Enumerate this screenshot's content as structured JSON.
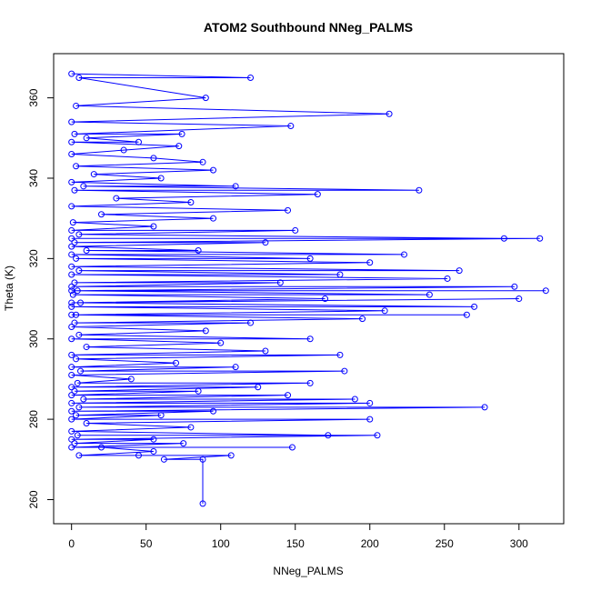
{
  "chart_data": {
    "type": "line",
    "title": "ATOM2 Southbound NNeg_PALMS",
    "xlabel": "NNeg_PALMS",
    "ylabel": "Theta (K)",
    "xlim": [
      -12,
      330
    ],
    "ylim": [
      254,
      371
    ],
    "x_ticks": [
      0,
      50,
      100,
      150,
      200,
      250,
      300
    ],
    "y_ticks": [
      260,
      280,
      300,
      320,
      340,
      360
    ],
    "grid": false,
    "legend": "none",
    "series": [
      {
        "color": "#0000ff",
        "marker": "open-circle",
        "points": [
          [
            0,
            366
          ],
          [
            120,
            365
          ],
          [
            5,
            365
          ],
          [
            90,
            360
          ],
          [
            3,
            358
          ],
          [
            213,
            356
          ],
          [
            0,
            354
          ],
          [
            147,
            353
          ],
          [
            2,
            351
          ],
          [
            74,
            351
          ],
          [
            10,
            350
          ],
          [
            45,
            349
          ],
          [
            0,
            349
          ],
          [
            72,
            348
          ],
          [
            35,
            347
          ],
          [
            0,
            346
          ],
          [
            55,
            345
          ],
          [
            88,
            344
          ],
          [
            3,
            343
          ],
          [
            95,
            342
          ],
          [
            15,
            341
          ],
          [
            60,
            340
          ],
          [
            0,
            339
          ],
          [
            110,
            338
          ],
          [
            8,
            338
          ],
          [
            233,
            337
          ],
          [
            2,
            337
          ],
          [
            165,
            336
          ],
          [
            30,
            335
          ],
          [
            80,
            334
          ],
          [
            0,
            333
          ],
          [
            145,
            332
          ],
          [
            20,
            331
          ],
          [
            95,
            330
          ],
          [
            1,
            329
          ],
          [
            55,
            328
          ],
          [
            0,
            327
          ],
          [
            150,
            327
          ],
          [
            5,
            326
          ],
          [
            290,
            325
          ],
          [
            0,
            325
          ],
          [
            314,
            325
          ],
          [
            2,
            324
          ],
          [
            130,
            324
          ],
          [
            0,
            323
          ],
          [
            85,
            322
          ],
          [
            10,
            322
          ],
          [
            223,
            321
          ],
          [
            0,
            321
          ],
          [
            160,
            320
          ],
          [
            3,
            320
          ],
          [
            200,
            319
          ],
          [
            0,
            318
          ],
          [
            260,
            317
          ],
          [
            5,
            317
          ],
          [
            180,
            316
          ],
          [
            0,
            316
          ],
          [
            252,
            315
          ],
          [
            2,
            314
          ],
          [
            140,
            314
          ],
          [
            0,
            313
          ],
          [
            297,
            313
          ],
          [
            4,
            312
          ],
          [
            318,
            312
          ],
          [
            0,
            312
          ],
          [
            240,
            311
          ],
          [
            1,
            311
          ],
          [
            170,
            310
          ],
          [
            0,
            309
          ],
          [
            300,
            310
          ],
          [
            6,
            309
          ],
          [
            270,
            308
          ],
          [
            0,
            308
          ],
          [
            210,
            307
          ],
          [
            3,
            306
          ],
          [
            265,
            306
          ],
          [
            0,
            306
          ],
          [
            195,
            305
          ],
          [
            2,
            304
          ],
          [
            120,
            304
          ],
          [
            0,
            303
          ],
          [
            90,
            302
          ],
          [
            5,
            301
          ],
          [
            160,
            300
          ],
          [
            0,
            300
          ],
          [
            100,
            299
          ],
          [
            10,
            298
          ],
          [
            130,
            297
          ],
          [
            0,
            296
          ],
          [
            180,
            296
          ],
          [
            3,
            295
          ],
          [
            70,
            294
          ],
          [
            0,
            293
          ],
          [
            110,
            293
          ],
          [
            6,
            292
          ],
          [
            183,
            292
          ],
          [
            0,
            291
          ],
          [
            40,
            290
          ],
          [
            4,
            289
          ],
          [
            160,
            289
          ],
          [
            0,
            288
          ],
          [
            125,
            288
          ],
          [
            2,
            287
          ],
          [
            85,
            287
          ],
          [
            0,
            286
          ],
          [
            145,
            286
          ],
          [
            8,
            285
          ],
          [
            190,
            285
          ],
          [
            0,
            284
          ],
          [
            200,
            284
          ],
          [
            5,
            283
          ],
          [
            277,
            283
          ],
          [
            0,
            282
          ],
          [
            95,
            282
          ],
          [
            3,
            281
          ],
          [
            60,
            281
          ],
          [
            0,
            280
          ],
          [
            200,
            280
          ],
          [
            10,
            279
          ],
          [
            80,
            278
          ],
          [
            0,
            277
          ],
          [
            172,
            276
          ],
          [
            4,
            276
          ],
          [
            205,
            276
          ],
          [
            0,
            275
          ],
          [
            55,
            275
          ],
          [
            2,
            274
          ],
          [
            75,
            274
          ],
          [
            0,
            273
          ],
          [
            148,
            273
          ],
          [
            20,
            273
          ],
          [
            55,
            272
          ],
          [
            5,
            271
          ],
          [
            45,
            271
          ],
          [
            107,
            271
          ],
          [
            62,
            270
          ],
          [
            88,
            270
          ],
          [
            88,
            259
          ]
        ]
      }
    ]
  }
}
